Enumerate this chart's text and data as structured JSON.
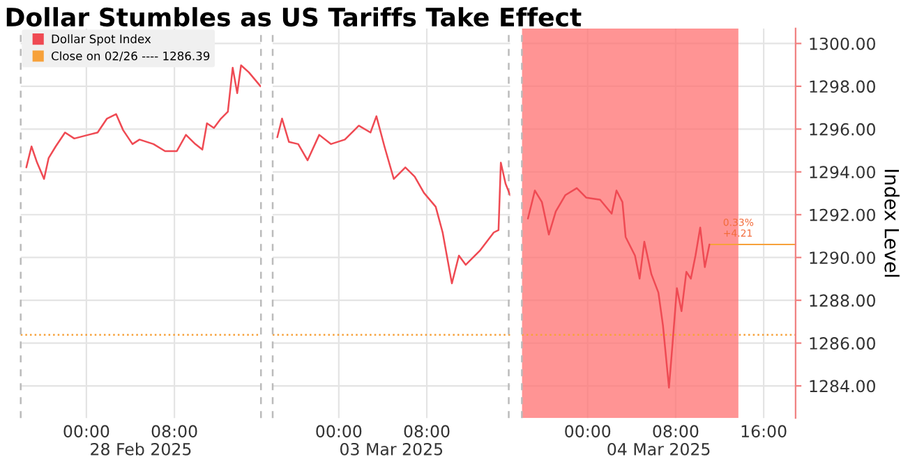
{
  "chart_data": [
    {
      "type": "line",
      "title": "Dollar Stumbles as US Tariffs Take Effect",
      "x": [
        -5.46,
        -4.99,
        -4.48,
        -3.85,
        -3.43,
        -2.79,
        -1.94,
        -1.1,
        0.17,
        1.02,
        1.87,
        2.7,
        3.34,
        4.19,
        4.83,
        6.1,
        7.15,
        8.22,
        9.05,
        9.9,
        10.54,
        10.96,
        11.59,
        12.23,
        12.86,
        13.3,
        13.71,
        14.06,
        14.77,
        15.83
      ],
      "series": [
        {
          "name": "Dollar Spot Index",
          "color": "#ef4a53",
          "values": [
            1294.21,
            1295.19,
            1294.43,
            1293.67,
            1294.65,
            1295.19,
            1295.84,
            1295.56,
            1295.73,
            1295.84,
            1296.49,
            1296.7,
            1295.95,
            1295.3,
            1295.51,
            1295.3,
            1294.97,
            1294.97,
            1295.73,
            1295.3,
            1295.04,
            1296.27,
            1296.05,
            1296.49,
            1296.81,
            1298.87,
            1297.68,
            1298.98,
            1298.65,
            1298.0
          ]
        }
      ],
      "xlim": [
        -5.97,
        15.87
      ],
      "xlabel": "28 Feb 2025",
      "xticks": [
        {
          "value": 0,
          "label": "00:00"
        },
        {
          "value": 8,
          "label": "08:00"
        }
      ],
      "ylim": [
        1282.5,
        1300.7
      ],
      "yticks": [
        1284,
        1286,
        1288,
        1290,
        1292,
        1294,
        1296,
        1298,
        1300
      ],
      "tick_labels": "x",
      "ref_lines": [
        {
          "axis": "y",
          "value": 1286.39,
          "label": "Close on 02/26 ---- 1286.39",
          "color": "#f7a13a",
          "line_style": "dotted"
        },
        {
          "axis": "x",
          "value": -5.97,
          "color": "#bbbbbb",
          "line_style": "dashed"
        },
        {
          "axis": "x",
          "value": 15.87,
          "color": "#bbbbbb",
          "line_style": "dashed"
        }
      ],
      "grid": true,
      "legend": "top left",
      "line_style": "solid",
      "marker": "none"
    },
    {
      "type": "line",
      "x": [
        -5.59,
        -5.16,
        -4.53,
        -3.69,
        -2.84,
        -1.78,
        -0.72,
        0.55,
        1.82,
        2.88,
        3.42,
        4.15,
        5.0,
        6.05,
        6.9,
        7.74,
        8.81,
        9.44,
        10.28,
        10.92,
        11.54,
        12.81,
        14.09,
        14.52,
        14.73,
        15.16,
        15.58
      ],
      "series": [
        {
          "color": "#ef4a53",
          "values": [
            1295.62,
            1296.49,
            1295.4,
            1295.3,
            1294.54,
            1295.73,
            1295.3,
            1295.51,
            1296.16,
            1295.84,
            1296.6,
            1295.19,
            1293.67,
            1294.21,
            1293.78,
            1293.02,
            1292.37,
            1291.17,
            1288.79,
            1290.09,
            1289.66,
            1290.31,
            1291.17,
            1291.28,
            1294.43,
            1293.45,
            1292.91
          ]
        }
      ],
      "xlim": [
        -6.01,
        15.58
      ],
      "xlabel": "03 Mar 2025",
      "xticks": [
        {
          "value": 0,
          "label": "00:00"
        },
        {
          "value": 8,
          "label": "08:00"
        }
      ],
      "ylim": [
        1282.5,
        1300.7
      ],
      "yticks": [
        1284,
        1286,
        1288,
        1290,
        1292,
        1294,
        1296,
        1298,
        1300
      ],
      "tick_labels": "x",
      "ref_lines": [
        {
          "axis": "y",
          "value": 1286.39,
          "color": "#f7a13a",
          "line_style": "dotted"
        },
        {
          "axis": "x",
          "value": -6.01,
          "color": "#bbbbbb",
          "line_style": "dashed"
        },
        {
          "axis": "x",
          "value": 15.45,
          "color": "#bbbbbb",
          "line_style": "dashed"
        }
      ],
      "grid": true,
      "line_style": "solid",
      "marker": "none"
    },
    {
      "type": "line",
      "ylabel": "Index Level",
      "x": [
        -5.43,
        -4.8,
        -4.16,
        -3.53,
        -2.9,
        -2.04,
        -0.99,
        -0.14,
        1.13,
        2.18,
        2.62,
        3.16,
        3.45,
        4.3,
        4.72,
        5.15,
        5.79,
        6.43,
        6.84,
        7.39,
        7.7,
        8.11,
        8.53,
        8.97,
        9.38,
        9.8,
        10.23,
        10.65,
        11.07
      ],
      "series": [
        {
          "color": "#ef4a53",
          "values": [
            1291.82,
            1293.13,
            1292.59,
            1291.07,
            1292.15,
            1292.91,
            1293.24,
            1292.8,
            1292.7,
            1292.05,
            1293.13,
            1292.59,
            1290.96,
            1290.09,
            1289.01,
            1290.74,
            1289.22,
            1288.36,
            1286.84,
            1283.92,
            1285.87,
            1288.57,
            1287.49,
            1289.33,
            1289.01,
            1290.09,
            1291.4,
            1289.55,
            1290.61
          ]
        }
      ],
      "xlim": [
        -5.98,
        18.9
      ],
      "xlabel": "04 Mar 2025",
      "xticks": [
        {
          "value": 0,
          "label": "00:00"
        },
        {
          "value": 8,
          "label": "08:00"
        },
        {
          "value": 16,
          "label": "16:00"
        }
      ],
      "ylim": [
        1282.5,
        1300.7
      ],
      "yticks": [
        {
          "value": 1284,
          "label": "1284.00"
        },
        {
          "value": 1286,
          "label": "1286.00"
        },
        {
          "value": 1288,
          "label": "1288.00"
        },
        {
          "value": 1290,
          "label": "1290.00"
        },
        {
          "value": 1292,
          "label": "1292.00"
        },
        {
          "value": 1294,
          "label": "1294.00"
        },
        {
          "value": 1296,
          "label": "1296.00"
        },
        {
          "value": 1298,
          "label": "1298.00"
        },
        {
          "value": 1300,
          "label": "1300.00"
        }
      ],
      "ref_lines": [
        {
          "axis": "y",
          "value": 1286.39,
          "color": "#f7a13a",
          "line_style": "dotted"
        },
        {
          "axis": "x",
          "value": -5.98,
          "color": "#bbbbbb",
          "line_style": "dashed"
        },
        {
          "axis": "y",
          "value": 1290.61,
          "color": "#f7a13a",
          "line_style": "solid"
        }
      ],
      "bands": [
        {
          "axis": "x",
          "from": -5.98,
          "to": 13.7,
          "color": "#ff7070"
        }
      ],
      "annotations": [
        {
          "text": "0.33%\n+4.21",
          "x": 11.07,
          "y": 1290.61
        }
      ],
      "grid": true,
      "line_style": "solid",
      "marker": "none"
    }
  ]
}
